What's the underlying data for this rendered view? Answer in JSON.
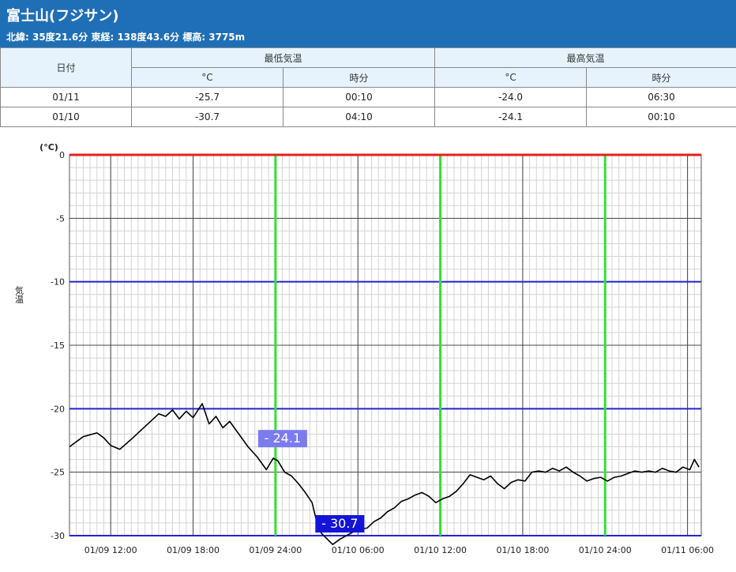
{
  "header": {
    "title": "富士山(フジサン)",
    "subtitle": "北緯: 35度21.6分 東経: 138度43.6分 標高: 3775m"
  },
  "summary_table": {
    "date_header": "日付",
    "min_header": "最低気温",
    "max_header": "最高気温",
    "unit_label": "°C",
    "time_label": "時分",
    "rows": [
      {
        "date": "01/11",
        "min": "-25.7",
        "min_time": "00:10",
        "max": "-24.0",
        "max_time": "06:30"
      },
      {
        "date": "01/10",
        "min": "-30.7",
        "min_time": "04:10",
        "max": "-24.1",
        "max_time": "00:10"
      }
    ]
  },
  "colors": {
    "header_bg": "#1f6fb6",
    "line": "#000000",
    "zero_line": "#e02020",
    "blue_gridline": "#2323d0",
    "day_boundary": "#33e033",
    "max_label_bg": "#7b7bf0",
    "min_label_bg": "#1414d8"
  },
  "chart_data": {
    "type": "line",
    "ylabel": "気温",
    "yunit": "(°C)",
    "ylim": [
      -30,
      0
    ],
    "yticks": [
      0,
      -5,
      -10,
      -15,
      -20,
      -25,
      -30
    ],
    "xticks": [
      "01/09 12:00",
      "01/09 18:00",
      "01/09 24:00",
      "01/10 06:00",
      "01/10 12:00",
      "01/10 18:00",
      "01/10 24:00",
      "01/11 06:00"
    ],
    "x_start": "01/09 09:00",
    "x_end": "01/11 07:00",
    "day_boundaries": [
      "01/09 24:00",
      "01/10 12:00",
      "01/10 24:00"
    ],
    "annotations": [
      {
        "label": "- 24.1",
        "x": "01/09 24:00",
        "y": -24.1,
        "kind": "max"
      },
      {
        "label": "- 30.7",
        "x": "01/10 04:10",
        "y": -30.7,
        "kind": "min"
      }
    ],
    "series": [
      {
        "points": [
          [
            "01/09 09:00",
            -23.0
          ],
          [
            "01/09 10:00",
            -22.2
          ],
          [
            "01/09 11:00",
            -21.9
          ],
          [
            "01/09 11:30",
            -22.3
          ],
          [
            "01/09 12:00",
            -22.9
          ],
          [
            "01/09 12:40",
            -23.2
          ],
          [
            "01/09 13:30",
            -22.4
          ],
          [
            "01/09 14:30",
            -21.4
          ],
          [
            "01/09 15:30",
            -20.4
          ],
          [
            "01/09 16:00",
            -20.6
          ],
          [
            "01/09 16:30",
            -20.1
          ],
          [
            "01/09 17:00",
            -20.8
          ],
          [
            "01/09 17:30",
            -20.2
          ],
          [
            "01/09 18:00",
            -20.7
          ],
          [
            "01/09 18:40",
            -19.6
          ],
          [
            "01/09 19:10",
            -21.2
          ],
          [
            "01/09 19:40",
            -20.6
          ],
          [
            "01/09 20:10",
            -21.5
          ],
          [
            "01/09 20:40",
            -21.0
          ],
          [
            "01/09 21:20",
            -22.0
          ],
          [
            "01/09 22:00",
            -23.0
          ],
          [
            "01/09 22:40",
            -23.8
          ],
          [
            "01/09 23:20",
            -24.8
          ],
          [
            "01/09 23:50",
            -23.9
          ],
          [
            "01/10 00:10",
            -24.1
          ],
          [
            "01/10 00:40",
            -25.0
          ],
          [
            "01/10 01:10",
            -25.3
          ],
          [
            "01/10 01:40",
            -25.9
          ],
          [
            "01/10 02:10",
            -26.6
          ],
          [
            "01/10 02:40",
            -27.4
          ],
          [
            "01/10 03:00",
            -28.9
          ],
          [
            "01/10 03:20",
            -29.8
          ],
          [
            "01/10 04:10",
            -30.7
          ],
          [
            "01/10 04:40",
            -30.3
          ],
          [
            "01/10 05:10",
            -30.0
          ],
          [
            "01/10 05:40",
            -29.7
          ],
          [
            "01/10 06:10",
            -29.5
          ],
          [
            "01/10 06:40",
            -29.4
          ],
          [
            "01/10 07:10",
            -28.9
          ],
          [
            "01/10 07:40",
            -28.6
          ],
          [
            "01/10 08:10",
            -28.1
          ],
          [
            "01/10 08:40",
            -27.8
          ],
          [
            "01/10 09:10",
            -27.3
          ],
          [
            "01/10 09:40",
            -27.1
          ],
          [
            "01/10 10:10",
            -26.8
          ],
          [
            "01/10 10:40",
            -26.6
          ],
          [
            "01/10 11:10",
            -26.9
          ],
          [
            "01/10 11:40",
            -27.4
          ],
          [
            "01/10 12:10",
            -27.1
          ],
          [
            "01/10 12:40",
            -26.9
          ],
          [
            "01/10 13:10",
            -26.5
          ],
          [
            "01/10 13:40",
            -25.9
          ],
          [
            "01/10 14:10",
            -25.2
          ],
          [
            "01/10 14:40",
            -25.4
          ],
          [
            "01/10 15:10",
            -25.6
          ],
          [
            "01/10 15:40",
            -25.3
          ],
          [
            "01/10 16:10",
            -25.9
          ],
          [
            "01/10 16:40",
            -26.3
          ],
          [
            "01/10 17:10",
            -25.8
          ],
          [
            "01/10 17:40",
            -25.6
          ],
          [
            "01/10 18:10",
            -25.7
          ],
          [
            "01/10 18:40",
            -25.0
          ],
          [
            "01/10 19:10",
            -24.9
          ],
          [
            "01/10 19:40",
            -25.0
          ],
          [
            "01/10 20:10",
            -24.7
          ],
          [
            "01/10 20:40",
            -24.9
          ],
          [
            "01/10 21:10",
            -24.6
          ],
          [
            "01/10 21:40",
            -25.0
          ],
          [
            "01/10 22:10",
            -25.3
          ],
          [
            "01/10 22:40",
            -25.7
          ],
          [
            "01/10 23:10",
            -25.5
          ],
          [
            "01/10 23:40",
            -25.4
          ],
          [
            "01/11 00:10",
            -25.7
          ],
          [
            "01/11 00:40",
            -25.4
          ],
          [
            "01/11 01:10",
            -25.3
          ],
          [
            "01/11 01:40",
            -25.1
          ],
          [
            "01/11 02:10",
            -24.9
          ],
          [
            "01/11 02:40",
            -25.0
          ],
          [
            "01/11 03:10",
            -24.9
          ],
          [
            "01/11 03:40",
            -25.0
          ],
          [
            "01/11 04:10",
            -24.7
          ],
          [
            "01/11 04:40",
            -24.9
          ],
          [
            "01/11 05:10",
            -25.0
          ],
          [
            "01/11 05:40",
            -24.6
          ],
          [
            "01/11 06:10",
            -24.8
          ],
          [
            "01/11 06:30",
            -24.0
          ],
          [
            "01/11 06:50",
            -24.6
          ]
        ]
      }
    ]
  }
}
